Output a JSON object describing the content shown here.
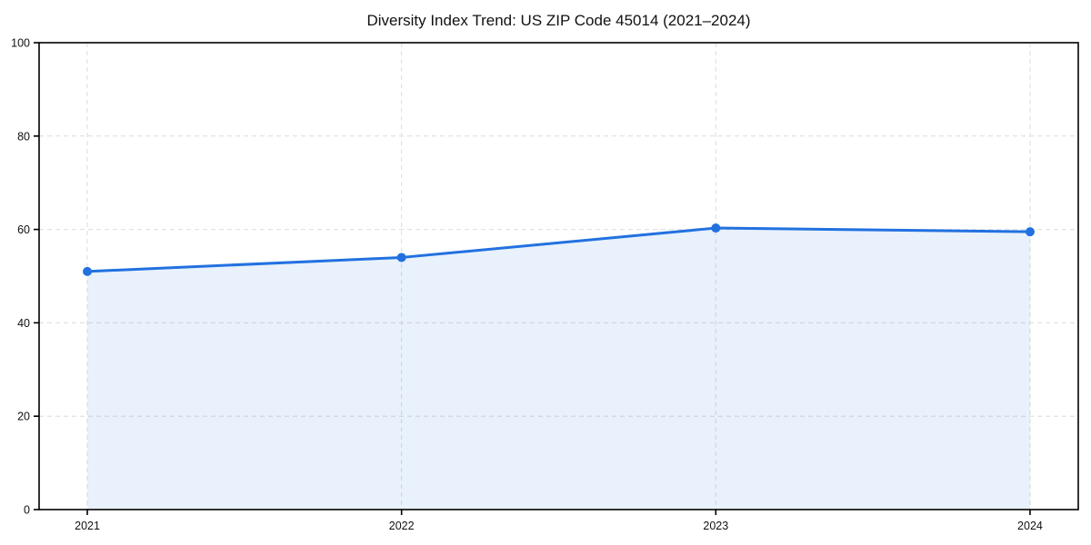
{
  "chart_data": {
    "type": "area",
    "title": "Diversity Index Trend: US ZIP Code 45014 (2021–2024)",
    "categories": [
      "2021",
      "2022",
      "2023",
      "2024"
    ],
    "series": [
      {
        "name": "Diversity Index",
        "values": [
          51,
          54,
          60.3,
          59.5
        ]
      }
    ],
    "xlabel": "",
    "ylabel": "",
    "ylim": [
      0,
      100
    ],
    "yticks": [
      0,
      20,
      40,
      60,
      80,
      100
    ],
    "grid": true,
    "grid_style": "dashed",
    "legend": false,
    "marker": "circle",
    "colors": {
      "line": "#2271e0",
      "fill": "rgba(34,113,224,0.10)",
      "grid": "#dcdcdc",
      "spine": "#000000",
      "text": "#111111",
      "background": "#ffffff"
    }
  }
}
